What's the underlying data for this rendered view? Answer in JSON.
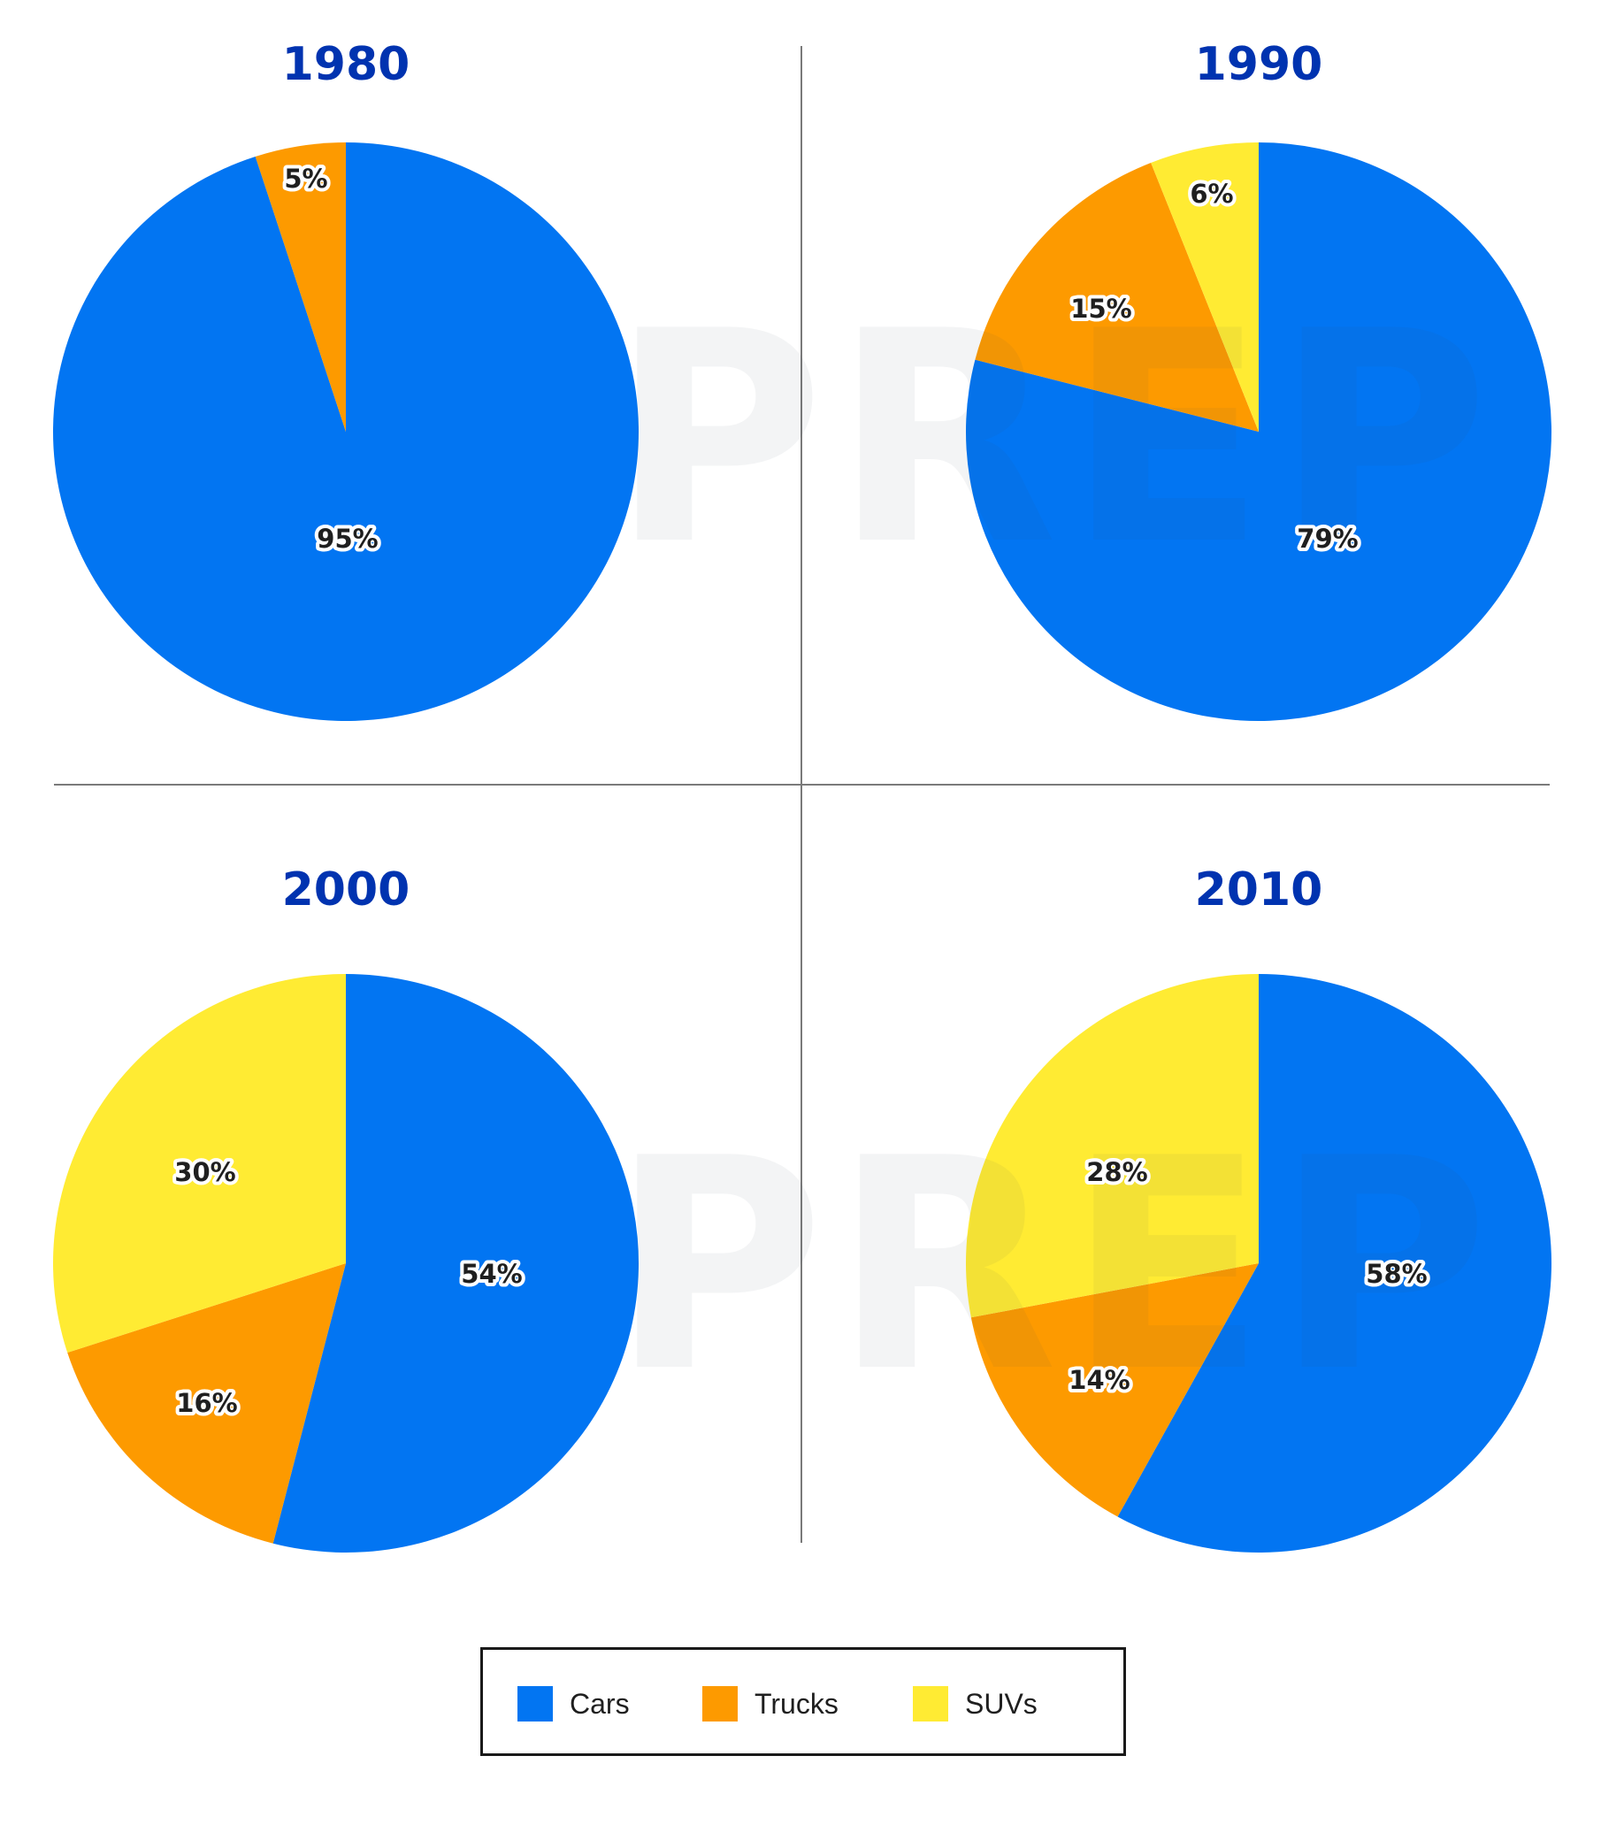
{
  "colors": {
    "Cars": "#0275F2",
    "Trucks": "#FD9A00",
    "SUVs": "#FFEB33",
    "title": "#0033B0",
    "divider": "#7a7a7a"
  },
  "watermark": "PREP",
  "legend": {
    "items": [
      {
        "label": "Cars",
        "key": "Cars"
      },
      {
        "label": "Trucks",
        "key": "Trucks"
      },
      {
        "label": "SUVs",
        "key": "SUVs"
      }
    ]
  },
  "chart_data": [
    {
      "type": "pie",
      "title": "1980",
      "categories": [
        "Cars",
        "Trucks",
        "SUVs"
      ],
      "values": [
        95,
        5,
        0
      ],
      "labels": [
        "95%",
        "5%",
        ""
      ],
      "legend_position": "bottom"
    },
    {
      "type": "pie",
      "title": "1990",
      "categories": [
        "Cars",
        "Trucks",
        "SUVs"
      ],
      "values": [
        79,
        15,
        6
      ],
      "labels": [
        "79%",
        "15%",
        "6%"
      ],
      "legend_position": "bottom"
    },
    {
      "type": "pie",
      "title": "2000",
      "categories": [
        "Cars",
        "Trucks",
        "SUVs"
      ],
      "values": [
        54,
        16,
        30
      ],
      "labels": [
        "54%",
        "16%",
        "30%"
      ],
      "legend_position": "bottom"
    },
    {
      "type": "pie",
      "title": "2010",
      "categories": [
        "Cars",
        "Trucks",
        "SUVs"
      ],
      "values": [
        58,
        14,
        28
      ],
      "labels": [
        "58%",
        "14%",
        "28%"
      ],
      "legend_position": "bottom"
    }
  ]
}
